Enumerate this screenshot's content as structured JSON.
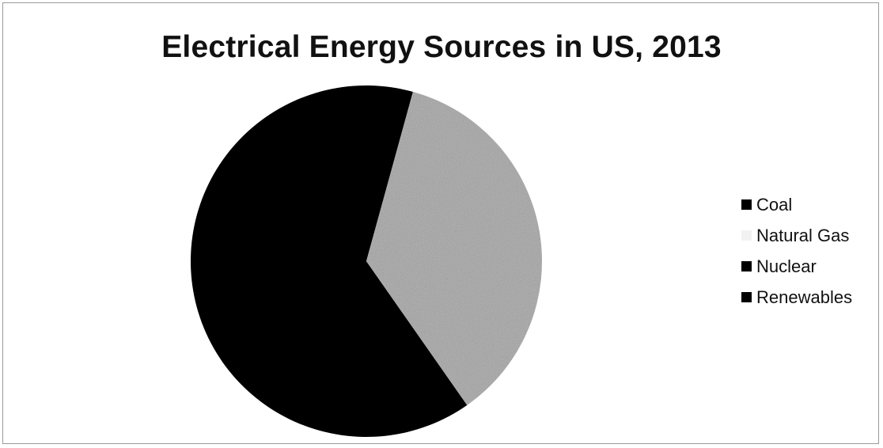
{
  "chart_data": {
    "type": "pie",
    "title": "Electrical Energy Sources in US, 2013",
    "categories": [
      "Coal",
      "Natural Gas",
      "Nuclear",
      "Renewables"
    ],
    "values": [
      64,
      36,
      0,
      0
    ],
    "colors": [
      "#000000",
      "#b4b4b4",
      "#000000",
      "#000000"
    ],
    "legend_position": "right",
    "start_angle_deg": 145
  }
}
